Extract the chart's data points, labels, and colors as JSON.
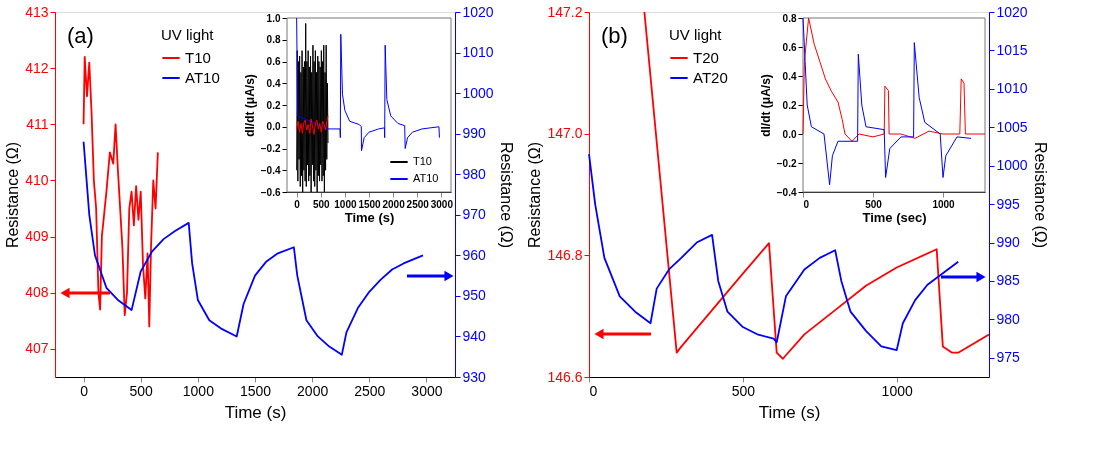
{
  "chart_data": [
    {
      "type": "line",
      "xlabel": "Time (s)",
      "ylabel": "Resistance (Ω)",
      "y2label": "Resistance (Ω)",
      "annotations": [
        "(a)"
      ],
      "legend": "top left",
      "legend_title": "UV light",
      "grid": false,
      "xlim": [
        -250,
        3250
      ],
      "xticks": [
        0,
        500,
        1000,
        1500,
        2000,
        2500,
        3000
      ],
      "ylim": [
        406.5,
        413
      ],
      "yticks": [
        407,
        408,
        409,
        410,
        411,
        412,
        413
      ],
      "y2lim": [
        930,
        1020
      ],
      "y2ticks": [
        930,
        940,
        950,
        960,
        970,
        980,
        990,
        1000,
        1010,
        1020
      ],
      "series": [
        {
          "name": "T10",
          "color": "#ff0000",
          "x": [
            0,
            10,
            30,
            50,
            70,
            90,
            110,
            130,
            145,
            160,
            200,
            230,
            260,
            280,
            300,
            320,
            340,
            360,
            380,
            400,
            420,
            440,
            460,
            480,
            500,
            520,
            540,
            560,
            575,
            590,
            610,
            630,
            650
          ],
          "values": [
            411,
            412.2,
            411.5,
            412.1,
            411.2,
            410,
            409.5,
            408,
            407.7,
            409,
            409.8,
            410.5,
            410.3,
            411,
            410.2,
            409.5,
            408.8,
            407.6,
            408,
            409.5,
            409.8,
            409.2,
            409.9,
            409.3,
            409.8,
            408.5,
            407.9,
            408.7,
            407.4,
            408.8,
            410,
            409.5,
            410.5
          ]
        },
        {
          "name": "AT10",
          "color": "#0000ff",
          "axis": "y2",
          "x": [
            0,
            50,
            100,
            200,
            300,
            420,
            500,
            600,
            700,
            800,
            920,
            950,
            1000,
            1100,
            1200,
            1340,
            1400,
            1500,
            1600,
            1700,
            1840,
            1870,
            1950,
            2050,
            2150,
            2260,
            2300,
            2400,
            2500,
            2600,
            2700,
            2800,
            2970
          ],
          "values": [
            988,
            970,
            960,
            952,
            949,
            946.5,
            956,
            961,
            964,
            966,
            968,
            958,
            949,
            944,
            942,
            940,
            948,
            955,
            958.5,
            960.5,
            962,
            955,
            944,
            940,
            937.5,
            935.5,
            941,
            947,
            951,
            954,
            956.5,
            958,
            960
          ]
        }
      ]
    },
    {
      "type": "line",
      "xlabel": "Time (s)",
      "ylabel": "dI/dt (μA/s)",
      "legend": "bottom right",
      "grid": false,
      "xlim": [
        -200,
        3200
      ],
      "xticks": [
        0,
        500,
        1000,
        1500,
        2000,
        2500,
        3000
      ],
      "ylim": [
        -0.6,
        1.0
      ],
      "yticks": [
        -0.6,
        -0.4,
        -0.2,
        {
          "value": 0,
          "label": "0.0"
        },
        0.2,
        0.4,
        0.6,
        0.8,
        {
          "value": 1,
          "label": "1.0"
        }
      ],
      "series": [
        {
          "name": "T10",
          "color": "#000000",
          "x": [
            0,
            12,
            25,
            38,
            50,
            62,
            75,
            88,
            100,
            112,
            125,
            138,
            150,
            162,
            175,
            188,
            200,
            212,
            225,
            238,
            250,
            262,
            275,
            288,
            300,
            312,
            325,
            338,
            350,
            362,
            375,
            388,
            400,
            412,
            425,
            438,
            450,
            462,
            475,
            488,
            500,
            512,
            525,
            538,
            550,
            562,
            575,
            588,
            600,
            612,
            625,
            638,
            650
          ],
          "values": [
            -0.4,
            0.7,
            -0.5,
            0.6,
            -0.3,
            0.65,
            -0.55,
            0.5,
            -0.45,
            0.7,
            -0.6,
            0.55,
            -0.4,
            0.6,
            -0.5,
            0.95,
            -0.55,
            0.6,
            -0.35,
            0.7,
            -0.5,
            0.55,
            -0.45,
            0.65,
            -0.6,
            0.5,
            -0.35,
            0.75,
            -0.5,
            0.6,
            -0.55,
            0.7,
            -0.4,
            0.5,
            -0.6,
            0.65,
            -0.45,
            0.6,
            -0.5,
            0.55,
            -0.35,
            0.7,
            -0.5,
            0.6,
            -0.45,
            0.75,
            -0.6,
            0.5,
            -0.4,
            0.75,
            -0.3,
            0.4,
            -0.15
          ]
        },
        {
          "name": "AT10",
          "color": "#0000ff",
          "x": [
            0,
            20,
            650,
            900,
            905,
            915,
            950,
            1000,
            1100,
            1300,
            1340,
            1345,
            1400,
            1500,
            1700,
            1820,
            1825,
            1835,
            1870,
            1950,
            2100,
            2240,
            2250,
            2300,
            2400,
            2600,
            2950,
            2960
          ],
          "values": [
            1.0,
            0.1,
            -0.02,
            -0.02,
            -0.1,
            0.85,
            0.3,
            0.15,
            0.05,
            0.02,
            0.0,
            -0.22,
            -0.1,
            -0.05,
            -0.02,
            -0.01,
            -0.1,
            0.75,
            0.25,
            0.1,
            0.03,
            0.01,
            -0.2,
            -0.1,
            -0.05,
            -0.02,
            0.0,
            -0.1
          ]
        },
        {
          "color": "#ff0000",
          "x": [
            0,
            30,
            60,
            90,
            120,
            150,
            180,
            210,
            240,
            270,
            300,
            330,
            360,
            390,
            420,
            450,
            480,
            510,
            540,
            570,
            600,
            630,
            650
          ],
          "values": [
            -0.02,
            0.05,
            -0.05,
            0.03,
            -0.06,
            0.04,
            0.06,
            -0.03,
            0.02,
            -0.06,
            0.07,
            0.0,
            -0.07,
            0.04,
            0.06,
            -0.02,
            0.03,
            -0.05,
            0.05,
            0.02,
            -0.03,
            0.06,
            0.1
          ]
        }
      ]
    },
    {
      "type": "line",
      "xlabel": "Time (s)",
      "ylabel": "Resistance (Ω)",
      "y2label": "Resistance (Ω)",
      "annotations": [
        "(b)"
      ],
      "legend": "top left",
      "legend_title": "UV light",
      "grid": false,
      "xlim": [
        0,
        1300
      ],
      "xticks": [
        0,
        500,
        1000
      ],
      "ylim": [
        146.6,
        147.2
      ],
      "yticks": [
        146.6,
        146.8,
        {
          "value": 147,
          "label": "147.0"
        },
        147.2
      ],
      "y2lim": [
        972.5,
        1020
      ],
      "y2ticks": [
        975,
        980,
        985,
        990,
        995,
        1000,
        1005,
        1010,
        1015,
        1020
      ],
      "series": [
        {
          "name": "T20",
          "color": "#ff0000",
          "x": [
            180,
            285,
            300,
            400,
            500,
            585,
            610,
            630,
            700,
            800,
            900,
            1000,
            1130,
            1150,
            1180,
            1200,
            1300
          ],
          "values": [
            147.2,
            146.64,
            146.65,
            146.71,
            146.77,
            146.82,
            146.64,
            146.63,
            146.67,
            146.71,
            146.75,
            146.78,
            146.81,
            146.65,
            146.64,
            146.64,
            146.67
          ]
        },
        {
          "name": "AT20",
          "color": "#0000ff",
          "axis": "y2",
          "x": [
            0,
            20,
            50,
            100,
            150,
            200,
            220,
            260,
            300,
            350,
            400,
            420,
            450,
            500,
            550,
            600,
            610,
            640,
            700,
            750,
            800,
            820,
            850,
            900,
            950,
            1000,
            1020,
            1060,
            1100,
            1150,
            1200
          ],
          "values": [
            1001.5,
            995,
            988,
            983,
            981,
            979.5,
            984,
            986.5,
            988,
            990,
            991,
            985,
            981,
            979,
            978,
            977.5,
            977,
            983,
            986.5,
            988,
            989,
            985,
            981,
            978.5,
            976.5,
            976,
            979.5,
            982.5,
            984.5,
            986,
            987.5
          ]
        }
      ]
    },
    {
      "type": "line",
      "xlabel": "Time (sec)",
      "ylabel": "dI/dt (μA/s)",
      "grid": false,
      "xlim": [
        0,
        1300
      ],
      "xticks": [
        0,
        500,
        1000
      ],
      "ylim": [
        -0.4,
        0.8
      ],
      "yticks": [
        -0.4,
        -0.2,
        {
          "value": 0,
          "label": "0.0"
        },
        0.2,
        0.4,
        0.6,
        0.8
      ],
      "series": [
        {
          "color": "#ff0000",
          "x": [
            0,
            10,
            40,
            80,
            120,
            160,
            200,
            250,
            280,
            300,
            350,
            400,
            500,
            580,
            585,
            610,
            615,
            700,
            800,
            900,
            1000,
            1120,
            1130,
            1150,
            1160,
            1300
          ],
          "values": [
            0,
            0.5,
            0.8,
            0.62,
            0.5,
            0.38,
            0.3,
            0.22,
            0.1,
            0.0,
            -0.05,
            0.0,
            -0.02,
            0.0,
            0.33,
            0.3,
            0.0,
            0.0,
            -0.03,
            0.02,
            0.0,
            0.0,
            0.38,
            0.35,
            0.0,
            0.0
          ]
        },
        {
          "color": "#0000ff",
          "x": [
            0,
            15,
            30,
            60,
            150,
            190,
            210,
            250,
            390,
            395,
            420,
            450,
            580,
            590,
            620,
            700,
            790,
            795,
            830,
            870,
            980,
            1000,
            1020,
            1100,
            1200
          ],
          "values": [
            0.8,
            0.5,
            0.2,
            0.05,
            0.0,
            -0.35,
            -0.15,
            -0.05,
            -0.05,
            0.55,
            0.2,
            0.05,
            0.03,
            -0.3,
            -0.1,
            -0.02,
            -0.02,
            0.63,
            0.25,
            0.08,
            0.0,
            -0.3,
            -0.15,
            -0.02,
            -0.03
          ]
        }
      ]
    }
  ]
}
